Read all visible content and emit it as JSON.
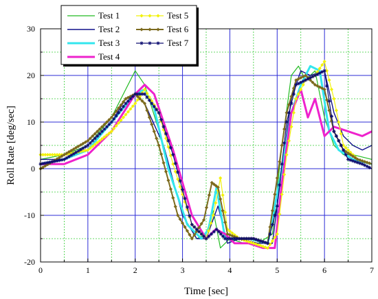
{
  "chart_data": {
    "type": "line",
    "xlabel": "Time [sec]",
    "ylabel": "Roll Rate [deg/sec]",
    "xlim": [
      0,
      7
    ],
    "ylim": [
      -20,
      30
    ],
    "xticks": [
      0,
      1,
      2,
      3,
      4,
      5,
      6,
      7
    ],
    "yticks": [
      -20,
      -10,
      0,
      10,
      20,
      30
    ],
    "grid": {
      "major": true,
      "minor": true,
      "major_color": "#2b2bd6",
      "minor_color": "#33cc33"
    },
    "legend": {
      "placement": "top-center",
      "columns": 2
    },
    "series": [
      {
        "name": "Test 1",
        "color": "#22bb22",
        "width": 1.2,
        "marker": "none",
        "x": [
          0,
          0.5,
          1,
          1.5,
          1.8,
          2.0,
          2.2,
          2.6,
          3.0,
          3.3,
          3.5,
          3.65,
          3.8,
          4.0,
          4.3,
          4.6,
          4.9,
          5.1,
          5.3,
          5.45,
          5.6,
          5.8,
          6.0,
          6.2,
          6.4,
          6.6,
          7.0
        ],
        "y": [
          2,
          3,
          5,
          11,
          17,
          21,
          18,
          5,
          -10,
          -15,
          -14,
          -9,
          -17,
          -15,
          -16,
          -16,
          -14,
          5,
          20,
          22,
          19,
          21,
          11,
          5,
          3,
          3,
          2
        ]
      },
      {
        "name": "Test 2",
        "color": "#10108a",
        "width": 1.4,
        "marker": "none",
        "x": [
          0,
          0.5,
          1,
          1.5,
          1.8,
          2.0,
          2.2,
          2.6,
          3.0,
          3.3,
          3.5,
          3.75,
          3.95,
          4.2,
          4.6,
          4.9,
          5.1,
          5.3,
          5.5,
          5.7,
          6.0,
          6.2,
          6.4,
          6.6,
          6.8,
          7.0
        ],
        "y": [
          2,
          2,
          5,
          10,
          15,
          16,
          14,
          5,
          -10,
          -15,
          -15,
          -8,
          -16,
          -15,
          -16,
          -16,
          0,
          15,
          21,
          20,
          21,
          12,
          7,
          5,
          4,
          5
        ]
      },
      {
        "name": "Test 3",
        "color": "#33e6ee",
        "width": 3,
        "marker": "none",
        "x": [
          0,
          0.5,
          1,
          1.5,
          2.0,
          2.2,
          2.4,
          2.7,
          3.1,
          3.4,
          3.55,
          3.72,
          3.9,
          4.1,
          4.4,
          4.8,
          5.1,
          5.3,
          5.5,
          5.7,
          5.9,
          6.1,
          6.3,
          6.6,
          7.0
        ],
        "y": [
          1,
          2,
          4,
          10,
          16,
          17,
          13,
          0,
          -12,
          -15,
          -13,
          -4,
          -15,
          -15,
          -15,
          -16,
          0,
          12,
          18,
          22,
          21,
          8,
          4,
          2,
          1
        ]
      },
      {
        "name": "Test 4",
        "color": "#ee22cc",
        "width": 3,
        "marker": "none",
        "x": [
          0,
          0.5,
          1,
          1.5,
          2.0,
          2.2,
          2.4,
          2.8,
          3.2,
          3.5,
          3.7,
          3.9,
          4.1,
          4.4,
          4.7,
          4.95,
          5.1,
          5.3,
          5.5,
          5.65,
          5.8,
          6.0,
          6.2,
          6.5,
          6.8,
          7.0
        ],
        "y": [
          1,
          1,
          3,
          8,
          16,
          18,
          16,
          4,
          -10,
          -15,
          -13,
          -14,
          -16,
          -16,
          -17,
          -17,
          -3,
          12,
          17,
          11,
          15,
          7,
          9,
          8,
          7,
          8
        ]
      },
      {
        "name": "Test 5",
        "color": "#f2f20a",
        "width": 1.2,
        "marker": "diamond",
        "x": [
          0,
          0.5,
          1,
          1.5,
          2.0,
          2.2,
          2.5,
          2.8,
          3.2,
          3.5,
          3.65,
          3.8,
          3.95,
          4.2,
          4.5,
          4.8,
          5.0,
          5.2,
          5.4,
          5.6,
          5.8,
          6.0,
          6.2,
          6.4,
          6.7,
          7.0
        ],
        "y": [
          3,
          3,
          4,
          8,
          14,
          17,
          12,
          1,
          -12,
          -15,
          -10,
          -2,
          -13,
          -15,
          -16,
          -17,
          -14,
          3,
          15,
          19,
          20,
          23,
          15,
          5,
          2,
          1
        ]
      },
      {
        "name": "Test 6",
        "color": "#7c6a1e",
        "width": 2,
        "marker": "diamond",
        "x": [
          0,
          0.5,
          1,
          1.5,
          1.8,
          2.0,
          2.2,
          2.5,
          2.9,
          3.2,
          3.45,
          3.62,
          3.75,
          3.95,
          4.2,
          4.5,
          4.8,
          5.0,
          5.2,
          5.4,
          5.6,
          5.8,
          6.0,
          6.2,
          6.4,
          6.7,
          7.0
        ],
        "y": [
          0,
          3,
          6,
          11,
          15,
          16,
          14,
          5,
          -10,
          -15,
          -11,
          -3,
          -4,
          -14,
          -15,
          -15,
          -16,
          -2,
          12,
          19,
          20,
          18,
          17,
          8,
          4,
          2,
          1
        ]
      },
      {
        "name": "Test 7",
        "color": "#0d0d70",
        "width": 1.2,
        "marker": "star",
        "x": [
          0,
          0.5,
          1,
          1.5,
          1.8,
          2.0,
          2.2,
          2.5,
          2.8,
          3.2,
          3.5,
          3.72,
          3.9,
          4.2,
          4.5,
          4.8,
          5.0,
          5.2,
          5.4,
          5.6,
          5.8,
          6.0,
          6.2,
          6.5,
          6.8,
          7.0
        ],
        "y": [
          1,
          2,
          5,
          10,
          14,
          16,
          16,
          12,
          3,
          -12,
          -15,
          -13,
          -15,
          -15,
          -15,
          -16,
          -8,
          10,
          18,
          19,
          20,
          21,
          8,
          2,
          1,
          0
        ]
      }
    ]
  }
}
